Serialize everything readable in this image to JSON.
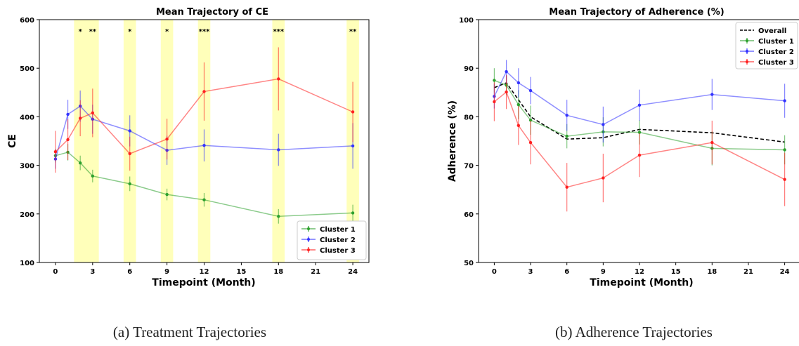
{
  "captions": {
    "left": "(a)  Treatment Trajectories",
    "right": "(b)  Adherence Trajectories"
  },
  "chart_data": [
    {
      "type": "line",
      "title": "Mean Trajectory of CE",
      "xlabel": "Timepoint (Month)",
      "ylabel": "CE",
      "xlim": [
        -1.3,
        25.3
      ],
      "ylim": [
        100,
        600
      ],
      "xticks": [
        0,
        3,
        6,
        9,
        12,
        15,
        18,
        21,
        24
      ],
      "yticks": [
        100,
        200,
        300,
        400,
        500,
        600
      ],
      "grid": false,
      "legend_position": "lower-right",
      "significance_bands": [
        {
          "from": 1.5,
          "to": 3.5
        },
        {
          "from": 5.5,
          "to": 6.5
        },
        {
          "from": 8.5,
          "to": 9.5
        },
        {
          "from": 11.5,
          "to": 12.5
        },
        {
          "from": 17.5,
          "to": 18.5
        },
        {
          "from": 23.5,
          "to": 24.5
        }
      ],
      "significance_labels": [
        {
          "x": 2,
          "text": "*"
        },
        {
          "x": 3,
          "text": "**"
        },
        {
          "x": 6,
          "text": "*"
        },
        {
          "x": 9,
          "text": "*"
        },
        {
          "x": 12,
          "text": "***"
        },
        {
          "x": 18,
          "text": "***"
        },
        {
          "x": 24,
          "text": "**"
        }
      ],
      "series": [
        {
          "name": "Cluster 1",
          "color": "#2ca02c",
          "x": [
            0,
            1,
            2,
            3,
            6,
            9,
            12,
            18,
            24
          ],
          "values": [
            320,
            327,
            305,
            278,
            262,
            240,
            229,
            195,
            202
          ],
          "err": [
            14,
            17,
            15,
            13,
            15,
            12,
            14,
            15,
            17
          ]
        },
        {
          "name": "Cluster 2",
          "color": "#3333ff",
          "x": [
            0,
            1,
            2,
            3,
            6,
            9,
            12,
            18,
            24
          ],
          "values": [
            313,
            405,
            422,
            395,
            371,
            331,
            341,
            332,
            340
          ],
          "err": [
            20,
            30,
            32,
            30,
            32,
            30,
            33,
            33,
            47
          ]
        },
        {
          "name": "Cluster 3",
          "color": "#ff2020",
          "x": [
            0,
            1,
            2,
            3,
            6,
            9,
            12,
            18,
            24
          ],
          "values": [
            328,
            353,
            397,
            408,
            324,
            354,
            452,
            478,
            410
          ],
          "err": [
            43,
            42,
            37,
            50,
            35,
            42,
            60,
            65,
            62
          ]
        }
      ]
    },
    {
      "type": "line",
      "title": "Mean Trajectory of Adherence (%)",
      "xlabel": "Timepoint (Month)",
      "ylabel": "Adherence (%)",
      "xlim": [
        -1.3,
        25.3
      ],
      "ylim": [
        50,
        100
      ],
      "xticks": [
        0,
        3,
        6,
        9,
        12,
        15,
        18,
        21,
        24
      ],
      "yticks": [
        50,
        60,
        70,
        80,
        90,
        100
      ],
      "grid": false,
      "legend_position": "upper-right",
      "series": [
        {
          "name": "Overall",
          "color": "#000000",
          "dashed": true,
          "x": [
            0,
            1,
            3,
            6,
            9,
            12,
            18,
            24
          ],
          "values": [
            86.0,
            87.0,
            80.0,
            75.4,
            75.7,
            77.4,
            76.7,
            74.8
          ],
          "err": []
        },
        {
          "name": "Cluster 1",
          "color": "#2ca02c",
          "x": [
            0,
            1,
            2,
            3,
            6,
            9,
            12,
            18,
            24
          ],
          "values": [
            87.5,
            86.5,
            82.5,
            79.3,
            76.0,
            76.9,
            76.8,
            73.5,
            73.2
          ],
          "err": [
            2.5,
            2.0,
            3.0,
            3.0,
            2.5,
            3.0,
            2.5,
            3.5,
            3.0
          ]
        },
        {
          "name": "Cluster 2",
          "color": "#3333ff",
          "x": [
            0,
            1,
            2,
            3,
            6,
            9,
            12,
            18,
            24
          ],
          "values": [
            84.2,
            89.3,
            87.0,
            85.4,
            80.3,
            78.4,
            82.4,
            84.6,
            83.3
          ],
          "err": [
            2.5,
            2.4,
            3.0,
            2.8,
            3.2,
            3.7,
            3.2,
            3.2,
            3.5
          ]
        },
        {
          "name": "Cluster 3",
          "color": "#ff2020",
          "x": [
            0,
            1,
            2,
            3,
            6,
            9,
            12,
            18,
            24
          ],
          "values": [
            83.1,
            85.1,
            78.2,
            74.7,
            65.5,
            67.4,
            72.1,
            74.7,
            67.1
          ],
          "err": [
            4.0,
            3.5,
            4.0,
            4.5,
            5.0,
            5.0,
            4.5,
            4.5,
            5.5
          ]
        }
      ]
    }
  ]
}
